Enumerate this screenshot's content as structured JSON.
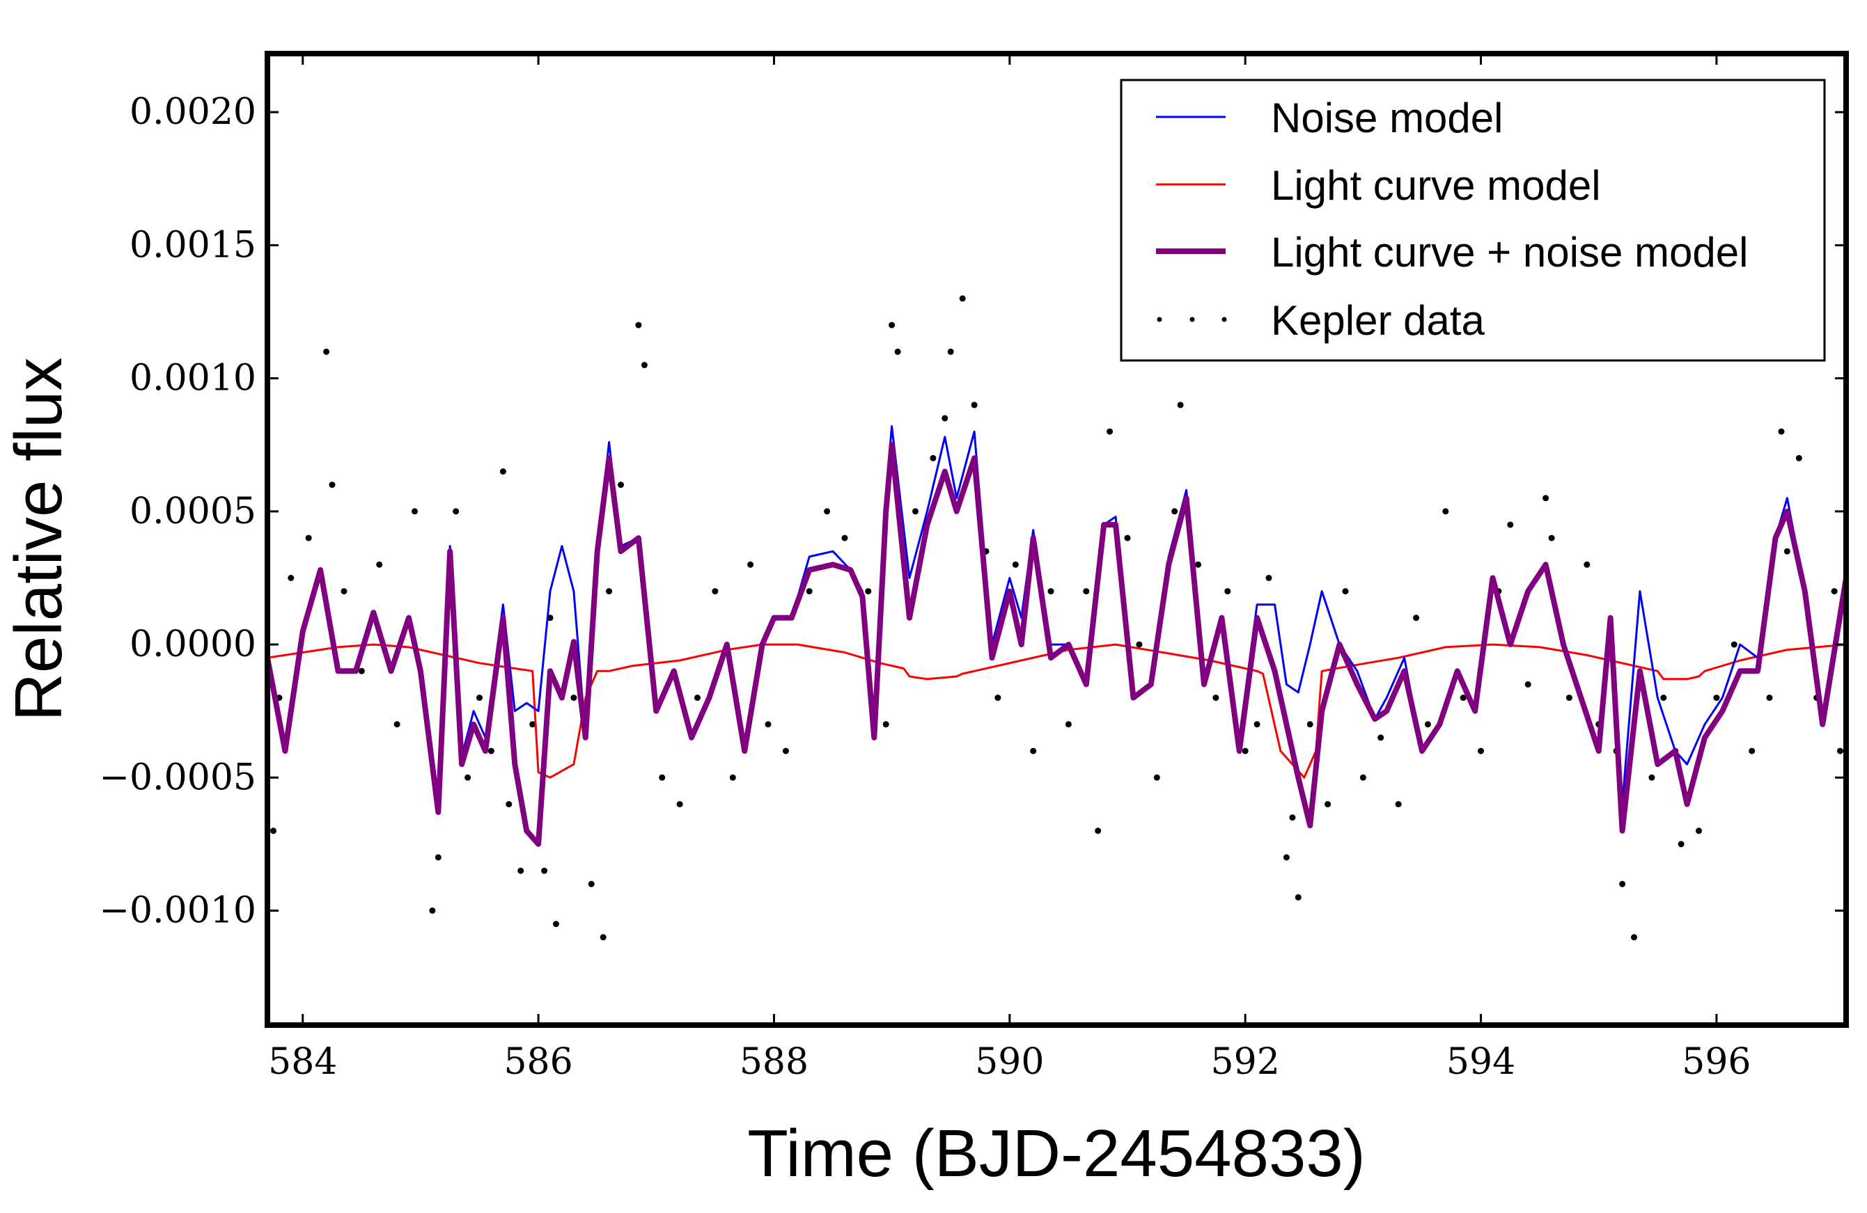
{
  "chart_data": {
    "type": "line",
    "title": "",
    "xlabel": "Time (BJD-2454833)",
    "ylabel": "Relative flux",
    "xlim": [
      583.7,
      597.1
    ],
    "ylim": [
      -0.00143,
      0.00222
    ],
    "grid": false,
    "legend_position": "top-right",
    "x_ticks": [
      584,
      586,
      588,
      590,
      592,
      594,
      596
    ],
    "x_tick_labels": [
      "584",
      "586",
      "588",
      "590",
      "592",
      "594",
      "596"
    ],
    "y_ticks": [
      -0.001,
      -0.0005,
      0.0,
      0.0005,
      0.001,
      0.0015,
      0.002
    ],
    "y_tick_labels": [
      "−0.0010",
      "−0.0005",
      "0.0000",
      "0.0005",
      "0.0010",
      "0.0015",
      "0.0020"
    ],
    "legend": [
      {
        "label": "Noise model",
        "style": "thin-line",
        "color": "#0000ff"
      },
      {
        "label": "Light curve model",
        "style": "thin-line",
        "color": "#ff0000"
      },
      {
        "label": "Light curve + noise model",
        "style": "thick-line",
        "color": "#800080"
      },
      {
        "label": "Kepler data",
        "style": "points",
        "color": "#000000"
      }
    ],
    "series": [
      {
        "name": "Light curve + noise model",
        "color": "#800080",
        "x": [
          583.7,
          583.85,
          584.0,
          584.15,
          584.3,
          584.45,
          584.6,
          584.75,
          584.9,
          585.0,
          585.15,
          585.25,
          585.35,
          585.45,
          585.55,
          585.7,
          585.8,
          585.9,
          586.0,
          586.1,
          586.2,
          586.3,
          586.4,
          586.5,
          586.6,
          586.7,
          586.85,
          587.0,
          587.15,
          587.3,
          587.45,
          587.6,
          587.75,
          587.9,
          588.0,
          588.15,
          588.3,
          588.5,
          588.65,
          588.75,
          588.85,
          588.95,
          589.0,
          589.15,
          589.3,
          589.45,
          589.55,
          589.7,
          589.85,
          590.0,
          590.1,
          590.2,
          590.35,
          590.5,
          590.65,
          590.8,
          590.9,
          591.05,
          591.2,
          591.35,
          591.5,
          591.65,
          591.8,
          591.95,
          592.1,
          592.25,
          592.35,
          592.45,
          592.55,
          592.65,
          592.8,
          592.95,
          593.1,
          593.2,
          593.35,
          593.5,
          593.65,
          593.8,
          593.95,
          594.1,
          594.25,
          594.4,
          594.55,
          594.7,
          594.85,
          595.0,
          595.1,
          595.2,
          595.35,
          595.5,
          595.65,
          595.75,
          595.9,
          596.05,
          596.2,
          596.35,
          596.5,
          596.6,
          596.75,
          596.9,
          597.1
        ],
        "y": [
          -5e-05,
          -0.0004,
          5e-05,
          0.00028,
          -0.0001,
          -0.0001,
          0.00012,
          -0.0001,
          0.0001,
          -0.0001,
          -0.00063,
          0.00035,
          -0.00045,
          -0.0003,
          -0.0004,
          0.0001,
          -0.00045,
          -0.0007,
          -0.00075,
          -0.0001,
          -0.0002,
          1e-05,
          -0.00035,
          0.00035,
          0.0007,
          0.00035,
          0.0004,
          -0.00025,
          -0.0001,
          -0.00035,
          -0.0002,
          0.0,
          -0.0004,
          0.0,
          0.0001,
          0.0001,
          0.00028,
          0.0003,
          0.00028,
          0.00018,
          -0.00035,
          0.0005,
          0.00075,
          0.0001,
          0.00045,
          0.00065,
          0.0005,
          0.0007,
          -5e-05,
          0.0002,
          0.0,
          0.0004,
          -5e-05,
          0.0,
          -0.00015,
          0.00045,
          0.00045,
          -0.0002,
          -0.00015,
          0.0003,
          0.00055,
          -0.00015,
          0.0001,
          -0.0004,
          0.0001,
          -0.0001,
          -0.0003,
          -0.0005,
          -0.00068,
          -0.00025,
          0.0,
          -0.00015,
          -0.00028,
          -0.00025,
          -0.0001,
          -0.0004,
          -0.0003,
          -0.0001,
          -0.00025,
          0.00025,
          0.0,
          0.0002,
          0.0003,
          0.0,
          -0.0002,
          -0.0004,
          0.0001,
          -0.0007,
          -0.0001,
          -0.00045,
          -0.0004,
          -0.0006,
          -0.00035,
          -0.00025,
          -0.0001,
          -0.0001,
          0.0004,
          0.0005,
          0.0002,
          -0.0003,
          0.00025
        ]
      },
      {
        "name": "Noise model",
        "color": "#0000ff",
        "x": [
          583.7,
          583.85,
          584.0,
          584.15,
          584.3,
          584.45,
          584.6,
          584.75,
          584.9,
          585.0,
          585.15,
          585.25,
          585.35,
          585.45,
          585.55,
          585.7,
          585.8,
          585.9,
          586.0,
          586.1,
          586.2,
          586.3,
          586.4,
          586.5,
          586.6,
          586.7,
          586.85,
          587.0,
          587.15,
          587.3,
          587.45,
          587.6,
          587.75,
          587.9,
          588.0,
          588.15,
          588.3,
          588.5,
          588.65,
          588.75,
          588.85,
          588.95,
          589.0,
          589.15,
          589.3,
          589.45,
          589.55,
          589.7,
          589.85,
          590.0,
          590.1,
          590.2,
          590.35,
          590.5,
          590.65,
          590.8,
          590.9,
          591.05,
          591.2,
          591.35,
          591.5,
          591.65,
          591.8,
          591.95,
          592.1,
          592.25,
          592.35,
          592.45,
          592.55,
          592.65,
          592.8,
          592.95,
          593.1,
          593.2,
          593.35,
          593.5,
          593.65,
          593.8,
          593.95,
          594.1,
          594.25,
          594.4,
          594.55,
          594.7,
          594.85,
          595.0,
          595.1,
          595.2,
          595.35,
          595.5,
          595.65,
          595.75,
          595.9,
          596.05,
          596.2,
          596.35,
          596.5,
          596.6,
          596.75,
          596.9,
          597.1
        ],
        "y": [
          -5e-05,
          -0.0004,
          5e-05,
          0.00028,
          -0.0001,
          -0.0001,
          0.00012,
          -0.0001,
          0.0001,
          -0.0001,
          -0.00063,
          0.00037,
          -0.00042,
          -0.00025,
          -0.00035,
          0.00015,
          -0.00025,
          -0.00022,
          -0.00025,
          0.0002,
          0.00037,
          0.0002,
          -0.00035,
          0.00035,
          0.00076,
          0.00037,
          0.0004,
          -0.00025,
          -0.0001,
          -0.00035,
          -0.0002,
          0.0,
          -0.0004,
          0.0,
          0.0001,
          0.0001,
          0.00033,
          0.00035,
          0.00028,
          0.0002,
          -0.00032,
          0.00055,
          0.00082,
          0.00025,
          0.0005,
          0.00078,
          0.00055,
          0.0008,
          0.0,
          0.00025,
          0.0001,
          0.00043,
          0.0,
          0.0,
          -0.00015,
          0.00045,
          0.00048,
          -0.0002,
          -0.00015,
          0.00033,
          0.00058,
          -0.00015,
          0.0001,
          -0.00035,
          0.00015,
          0.00015,
          -0.00015,
          -0.00018,
          0.0,
          0.0002,
          0.0,
          -0.0001,
          -0.00028,
          -0.0002,
          -5e-05,
          -0.0004,
          -0.0003,
          -0.0001,
          -0.00025,
          0.00025,
          0.0,
          0.0002,
          0.0003,
          0.0,
          -0.0002,
          -0.0004,
          0.0001,
          -0.0006,
          0.0002,
          -0.0002,
          -0.0004,
          -0.00045,
          -0.0003,
          -0.0002,
          0.0,
          -5e-05,
          0.0004,
          0.00055,
          0.0002,
          -0.0003,
          0.00025
        ]
      },
      {
        "name": "Light curve model",
        "color": "#ff0000",
        "x": [
          583.7,
          584.0,
          584.3,
          584.6,
          584.9,
          585.2,
          585.5,
          585.8,
          585.95,
          586.0,
          586.1,
          586.3,
          586.4,
          586.5,
          586.6,
          586.8,
          587.2,
          587.6,
          587.9,
          588.2,
          588.6,
          588.9,
          589.1,
          589.15,
          589.3,
          589.55,
          589.6,
          589.7,
          590.1,
          590.5,
          590.9,
          591.3,
          591.7,
          592.1,
          592.15,
          592.3,
          592.5,
          592.6,
          592.65,
          592.9,
          593.3,
          593.7,
          594.1,
          594.5,
          594.9,
          595.3,
          595.5,
          595.55,
          595.75,
          595.85,
          595.9,
          596.2,
          596.6,
          597.1
        ],
        "y": [
          -5e-05,
          -3e-05,
          -1e-05,
          0.0,
          -1e-05,
          -4e-05,
          -7e-05,
          -9e-05,
          -0.0001,
          -0.00048,
          -0.0005,
          -0.00045,
          -0.0002,
          -0.0001,
          -0.0001,
          -8e-05,
          -6e-05,
          -2e-05,
          0.0,
          0.0,
          -3e-05,
          -7e-05,
          -9e-05,
          -0.00012,
          -0.00013,
          -0.00012,
          -0.00011,
          -0.0001,
          -6e-05,
          -2e-05,
          0.0,
          -3e-05,
          -6e-05,
          -0.0001,
          -0.00011,
          -0.0004,
          -0.0005,
          -0.0004,
          -0.0001,
          -8e-05,
          -5e-05,
          -1e-05,
          0.0,
          -1e-05,
          -4e-05,
          -8e-05,
          -0.0001,
          -0.00013,
          -0.00013,
          -0.00012,
          -0.0001,
          -6e-05,
          -2e-05,
          0.0
        ]
      },
      {
        "name": "Kepler data",
        "color": "#000000",
        "x": [
          583.75,
          583.8,
          583.9,
          584.05,
          584.2,
          584.25,
          584.35,
          584.5,
          584.65,
          584.8,
          584.95,
          585.1,
          585.15,
          585.3,
          585.4,
          585.5,
          585.6,
          585.7,
          585.75,
          585.85,
          585.95,
          586.05,
          586.1,
          586.15,
          586.3,
          586.45,
          586.55,
          586.6,
          586.7,
          586.85,
          586.9,
          587.05,
          587.2,
          587.35,
          587.5,
          587.65,
          587.8,
          587.95,
          588.1,
          588.3,
          588.45,
          588.6,
          588.8,
          588.95,
          589.0,
          589.05,
          589.2,
          589.35,
          589.45,
          589.5,
          589.6,
          589.7,
          589.8,
          589.9,
          590.05,
          590.2,
          590.35,
          590.5,
          590.65,
          590.75,
          590.85,
          591.0,
          591.1,
          591.25,
          591.4,
          591.45,
          591.6,
          591.75,
          591.85,
          592.0,
          592.1,
          592.2,
          592.35,
          592.4,
          592.45,
          592.55,
          592.7,
          592.85,
          593.0,
          593.15,
          593.3,
          593.45,
          593.55,
          593.7,
          593.85,
          594.0,
          594.15,
          594.25,
          594.4,
          594.55,
          594.6,
          594.75,
          594.9,
          595.0,
          595.15,
          595.2,
          595.3,
          595.45,
          595.55,
          595.65,
          595.7,
          595.85,
          596.0,
          596.15,
          596.3,
          596.45,
          596.55,
          596.6,
          596.7,
          596.85,
          597.0,
          597.05
        ],
        "y": [
          -0.0007,
          -0.0002,
          0.00025,
          0.0004,
          0.0011,
          0.0006,
          0.0002,
          -0.0001,
          0.0003,
          -0.0003,
          0.0005,
          -0.001,
          -0.0008,
          0.0005,
          -0.0005,
          -0.0002,
          -0.0004,
          0.00065,
          -0.0006,
          -0.00085,
          -0.0003,
          -0.00085,
          0.0001,
          -0.00105,
          -0.0002,
          -0.0009,
          -0.0011,
          0.0002,
          0.0006,
          0.0012,
          0.00105,
          -0.0005,
          -0.0006,
          -0.0002,
          0.0002,
          -0.0005,
          0.0003,
          -0.0003,
          -0.0004,
          0.0002,
          0.0005,
          0.0004,
          0.0002,
          -0.0003,
          0.0012,
          0.0011,
          0.0005,
          0.0007,
          0.00085,
          0.0011,
          0.0013,
          0.0009,
          0.00035,
          -0.0002,
          0.0003,
          -0.0004,
          0.0002,
          -0.0003,
          0.0002,
          -0.0007,
          0.0008,
          0.0004,
          0.0,
          -0.0005,
          0.0005,
          0.0009,
          0.0003,
          -0.0002,
          0.0002,
          -0.0004,
          -0.0003,
          0.00025,
          -0.0008,
          -0.00065,
          -0.00095,
          -0.0003,
          -0.0006,
          0.0002,
          -0.0005,
          -0.00035,
          -0.0006,
          0.0001,
          -0.0003,
          0.0005,
          -0.0002,
          -0.0004,
          0.0002,
          0.00045,
          -0.00015,
          0.00055,
          0.0004,
          -0.0002,
          0.0003,
          -0.0003,
          -0.0004,
          -0.0009,
          -0.0011,
          -0.0005,
          -0.0002,
          -0.0004,
          -0.00075,
          -0.0007,
          -0.0002,
          0.0,
          -0.0004,
          -0.0002,
          0.0008,
          0.00035,
          0.0007,
          -0.0002,
          0.0002,
          -0.0004
        ]
      }
    ]
  }
}
